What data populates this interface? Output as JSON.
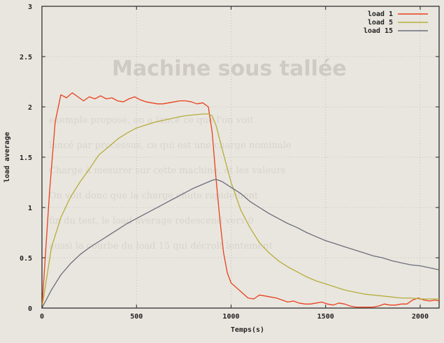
{
  "chart_data": {
    "type": "line",
    "title": "",
    "xlabel": "Temps(s)",
    "ylabel": "load average",
    "xlim": [
      0,
      2100
    ],
    "ylim": [
      0,
      3
    ],
    "x_ticks": [
      {
        "value": 0,
        "label": "0"
      },
      {
        "value": 500,
        "label": "500"
      },
      {
        "value": 1000,
        "label": "1000"
      },
      {
        "value": 1500,
        "label": "1500"
      },
      {
        "value": 2000,
        "label": "2000"
      }
    ],
    "y_ticks": [
      {
        "value": 0,
        "label": "0"
      },
      {
        "value": 0.5,
        "label": "0.5"
      },
      {
        "value": 1,
        "label": "1"
      },
      {
        "value": 1.5,
        "label": "1.5"
      },
      {
        "value": 2,
        "label": "2"
      },
      {
        "value": 2.5,
        "label": "2.5"
      },
      {
        "value": 3,
        "label": "3"
      }
    ],
    "grid": true,
    "legend_position": "top-right",
    "series": [
      {
        "name": "load 1",
        "color": "#e8401c",
        "x": [
          0,
          40,
          70,
          100,
          130,
          160,
          190,
          220,
          250,
          280,
          310,
          340,
          370,
          400,
          430,
          460,
          490,
          520,
          550,
          580,
          610,
          640,
          670,
          700,
          730,
          760,
          790,
          820,
          850,
          880,
          900,
          920,
          940,
          960,
          980,
          1000,
          1030,
          1060,
          1090,
          1120,
          1150,
          1180,
          1210,
          1240,
          1270,
          1300,
          1330,
          1360,
          1390,
          1420,
          1450,
          1480,
          1510,
          1540,
          1570,
          1600,
          1630,
          1660,
          1690,
          1720,
          1750,
          1780,
          1810,
          1840,
          1870,
          1900,
          1930,
          1960,
          1990,
          2020,
          2050,
          2080,
          2100
        ],
        "values": [
          0,
          1.15,
          1.85,
          2.12,
          2.09,
          2.14,
          2.1,
          2.06,
          2.1,
          2.08,
          2.11,
          2.08,
          2.09,
          2.06,
          2.05,
          2.08,
          2.1,
          2.07,
          2.05,
          2.04,
          2.03,
          2.03,
          2.04,
          2.05,
          2.06,
          2.06,
          2.05,
          2.03,
          2.04,
          2.0,
          1.75,
          1.3,
          0.9,
          0.55,
          0.35,
          0.25,
          0.2,
          0.15,
          0.1,
          0.09,
          0.13,
          0.12,
          0.11,
          0.1,
          0.08,
          0.06,
          0.07,
          0.05,
          0.04,
          0.04,
          0.05,
          0.06,
          0.04,
          0.03,
          0.05,
          0.04,
          0.02,
          0.01,
          0.01,
          0.01,
          0.01,
          0.02,
          0.04,
          0.03,
          0.03,
          0.04,
          0.04,
          0.08,
          0.1,
          0.08,
          0.07,
          0.08,
          0.07
        ]
      },
      {
        "name": "load 5",
        "color": "#b5ad3c",
        "x": [
          0,
          50,
          100,
          150,
          200,
          250,
          300,
          350,
          400,
          450,
          500,
          550,
          600,
          650,
          700,
          750,
          800,
          850,
          880,
          900,
          920,
          950,
          1000,
          1050,
          1100,
          1150,
          1200,
          1250,
          1300,
          1350,
          1400,
          1450,
          1500,
          1550,
          1600,
          1650,
          1700,
          1750,
          1800,
          1850,
          1900,
          1950,
          2000,
          2050,
          2100
        ],
        "values": [
          0,
          0.6,
          0.9,
          1.1,
          1.25,
          1.38,
          1.52,
          1.6,
          1.68,
          1.74,
          1.79,
          1.82,
          1.85,
          1.87,
          1.89,
          1.91,
          1.92,
          1.93,
          1.93,
          1.91,
          1.82,
          1.6,
          1.25,
          0.98,
          0.8,
          0.65,
          0.55,
          0.47,
          0.41,
          0.36,
          0.31,
          0.27,
          0.24,
          0.21,
          0.18,
          0.16,
          0.14,
          0.13,
          0.12,
          0.11,
          0.1,
          0.1,
          0.09,
          0.09,
          0.09
        ]
      },
      {
        "name": "load 15",
        "color": "#6b6e7c",
        "x": [
          0,
          50,
          100,
          150,
          200,
          250,
          300,
          350,
          400,
          450,
          500,
          550,
          600,
          650,
          700,
          750,
          800,
          850,
          900,
          920,
          950,
          1000,
          1050,
          1100,
          1150,
          1200,
          1250,
          1300,
          1350,
          1400,
          1450,
          1500,
          1550,
          1600,
          1650,
          1700,
          1750,
          1800,
          1850,
          1900,
          1950,
          2000,
          2050,
          2100
        ],
        "values": [
          0,
          0.18,
          0.33,
          0.44,
          0.53,
          0.6,
          0.66,
          0.72,
          0.78,
          0.84,
          0.89,
          0.94,
          0.99,
          1.04,
          1.09,
          1.14,
          1.19,
          1.23,
          1.27,
          1.28,
          1.26,
          1.2,
          1.14,
          1.06,
          1.0,
          0.94,
          0.89,
          0.84,
          0.8,
          0.75,
          0.71,
          0.67,
          0.64,
          0.61,
          0.58,
          0.55,
          0.52,
          0.5,
          0.47,
          0.45,
          0.43,
          0.42,
          0.4,
          0.38
        ]
      }
    ]
  }
}
